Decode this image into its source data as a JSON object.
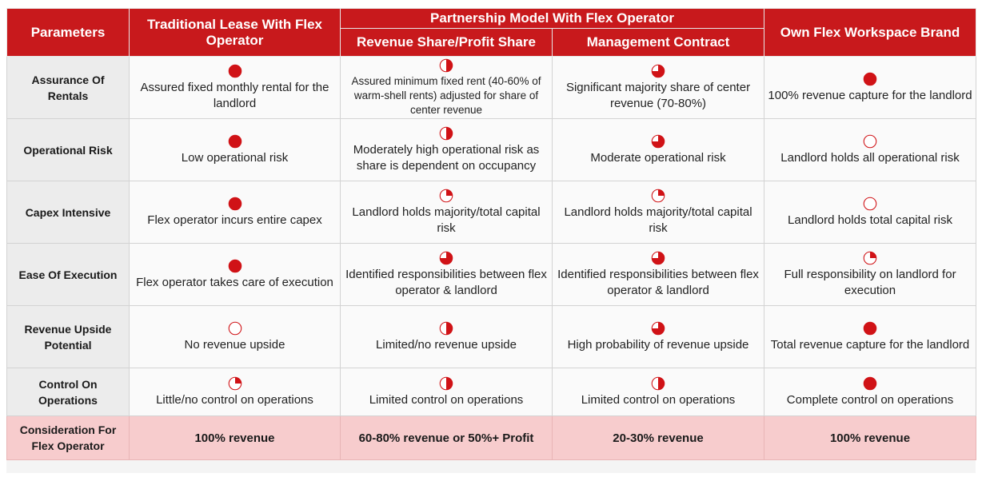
{
  "header": {
    "parameters": "Parameters",
    "traditional_lease": "Traditional Lease With Flex Operator",
    "partnership_model": "Partnership Model With Flex Operator",
    "revenue_share": "Revenue Share/Profit Share",
    "management_contract": "Management Contract",
    "own_brand": "Own Flex Workspace Brand"
  },
  "colors": {
    "header_bg": "#c8191c",
    "rating_fill": "#d01216",
    "consideration_bg": "#f7cccd"
  },
  "rating_scale_note": "quarter",
  "rows": [
    {
      "label": "Assurance Of Rentals",
      "cells": [
        {
          "rating": 4,
          "text": "Assured fixed monthly rental for the landlord"
        },
        {
          "rating": 2,
          "text": "Assured minimum fixed rent (40-60% of warm-shell rents) adjusted for share of center revenue"
        },
        {
          "rating": 3,
          "text": "Significant majority share of center revenue (70-80%)"
        },
        {
          "rating": 4,
          "text": "100% revenue capture for the landlord"
        }
      ]
    },
    {
      "label": "Operational Risk",
      "cells": [
        {
          "rating": 4,
          "text": "Low operational risk"
        },
        {
          "rating": 2,
          "text": "Moderately high operational risk as share is dependent on occupancy"
        },
        {
          "rating": 3,
          "text": "Moderate operational risk"
        },
        {
          "rating": 0,
          "text": "Landlord holds all operational risk"
        }
      ]
    },
    {
      "label": "Capex Intensive",
      "cells": [
        {
          "rating": 4,
          "text": "Flex operator incurs entire capex"
        },
        {
          "rating": 1,
          "text": "Landlord holds majority/total capital risk"
        },
        {
          "rating": 1,
          "text": "Landlord holds majority/total capital risk"
        },
        {
          "rating": 0,
          "text": "Landlord holds total capital risk"
        }
      ]
    },
    {
      "label": "Ease Of Execution",
      "cells": [
        {
          "rating": 4,
          "text": "Flex operator takes care of execution"
        },
        {
          "rating": 3,
          "text": "Identified responsibilities between flex operator & landlord"
        },
        {
          "rating": 3,
          "text": "Identified responsibilities between flex operator & landlord"
        },
        {
          "rating": 1,
          "text": "Full responsibility on landlord for execution"
        }
      ]
    },
    {
      "label": "Revenue Upside Potential",
      "cells": [
        {
          "rating": 0,
          "text": "No revenue upside"
        },
        {
          "rating": 2,
          "text": "Limited/no revenue upside"
        },
        {
          "rating": 3,
          "text": "High probability of revenue upside"
        },
        {
          "rating": 4,
          "text": "Total revenue capture for the landlord"
        }
      ]
    },
    {
      "label": "Control On Operations",
      "cells": [
        {
          "rating": 1,
          "text": "Little/no control on operations"
        },
        {
          "rating": 2,
          "text": "Limited control on operations"
        },
        {
          "rating": 2,
          "text": "Limited control on operations"
        },
        {
          "rating": 4,
          "text": "Complete control on operations"
        }
      ]
    }
  ],
  "consideration": {
    "label": "Consideration For Flex Operator",
    "values": [
      "100% revenue",
      "60-80% revenue or 50%+ Profit",
      "20-30% revenue",
      "100% revenue"
    ]
  }
}
